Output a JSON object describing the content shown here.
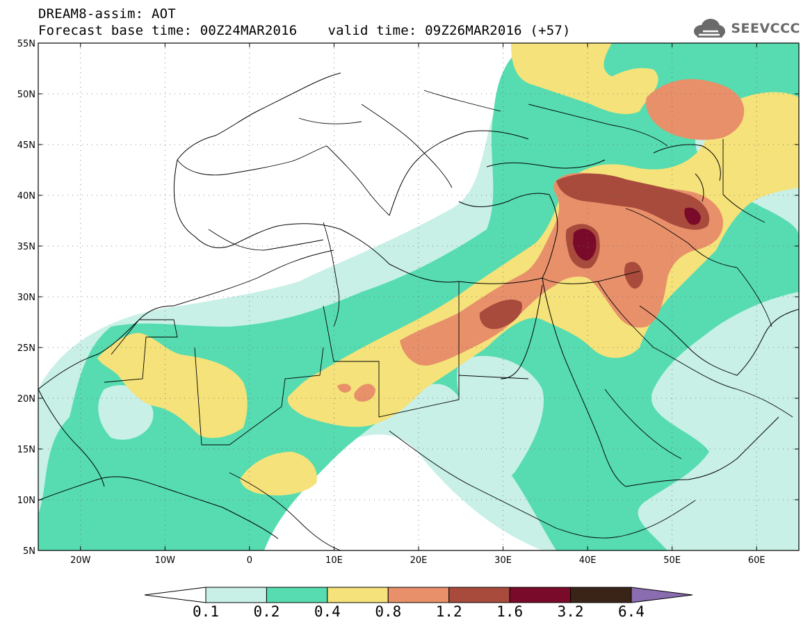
{
  "header": {
    "model_field": "DREAM8-assim: AOT",
    "base_time": "Forecast base time: 00Z24MAR2016",
    "valid_time": "valid time: 09Z26MAR2016 (+57)"
  },
  "logo": {
    "text": "SEEVCCC",
    "icon": "cloud-icon"
  },
  "map": {
    "lon_range": [
      -25,
      65
    ],
    "lat_range": [
      5,
      55
    ],
    "lon_ticks": [
      {
        "value": -20,
        "label": "20W"
      },
      {
        "value": -10,
        "label": "10W"
      },
      {
        "value": 0,
        "label": "0"
      },
      {
        "value": 10,
        "label": "10E"
      },
      {
        "value": 20,
        "label": "20E"
      },
      {
        "value": 30,
        "label": "30E"
      },
      {
        "value": 40,
        "label": "40E"
      },
      {
        "value": 50,
        "label": "50E"
      },
      {
        "value": 60,
        "label": "60E"
      }
    ],
    "lat_ticks": [
      {
        "value": 55,
        "label": "55N"
      },
      {
        "value": 50,
        "label": "50N"
      },
      {
        "value": 45,
        "label": "45N"
      },
      {
        "value": 40,
        "label": "40N"
      },
      {
        "value": 35,
        "label": "35N"
      },
      {
        "value": 30,
        "label": "30N"
      },
      {
        "value": 25,
        "label": "25N"
      },
      {
        "value": 20,
        "label": "20N"
      },
      {
        "value": 15,
        "label": "15N"
      },
      {
        "value": 10,
        "label": "10N"
      },
      {
        "value": 5,
        "label": "5N"
      }
    ],
    "gridlines": "dotted"
  },
  "colorbar": {
    "labels": [
      "0.1",
      "0.2",
      "0.4",
      "0.8",
      "1.2",
      "1.6",
      "3.2",
      "6.4"
    ],
    "colors": [
      "#ffffff",
      "#c8f0e6",
      "#56dcb0",
      "#f5e27a",
      "#e8906a",
      "#a84b3c",
      "#7a0a2a",
      "#3a2418",
      "#8a6cb0"
    ]
  },
  "colors": {
    "very_light": "#c8f0e6",
    "light": "#56dcb0",
    "yellow": "#f5e27a",
    "orange": "#e8906a",
    "brown": "#a84b3c",
    "dark_red": "#7a0a2a"
  }
}
